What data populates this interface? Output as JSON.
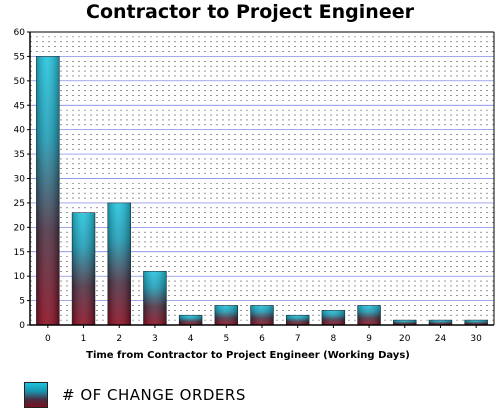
{
  "chart_data": {
    "type": "bar",
    "title": "Contractor to Project Engineer",
    "xlabel": "Time from Contractor to Project Engineer (Working Days)",
    "ylabel": "",
    "categories": [
      "0",
      "1",
      "2",
      "3",
      "4",
      "5",
      "6",
      "7",
      "8",
      "9",
      "20",
      "24",
      "30"
    ],
    "series": [
      {
        "name": "# OF CHANGE ORDERS",
        "values": [
          55,
          23,
          25,
          11,
          2,
          4,
          4,
          2,
          3,
          4,
          1,
          1,
          1
        ]
      }
    ],
    "ylim": [
      0,
      60
    ],
    "yticks": [
      0,
      5,
      10,
      15,
      20,
      25,
      30,
      35,
      40,
      45,
      50,
      55,
      60
    ],
    "grid": true,
    "legend_position": "bottom-left",
    "colors": {
      "bar_top": "#1fc3dd",
      "bar_mid": "#1a8aa5",
      "bar_bottom": "#8a0a1e",
      "grid_major": "#3b48d6",
      "grid_minor": "#555555"
    }
  }
}
